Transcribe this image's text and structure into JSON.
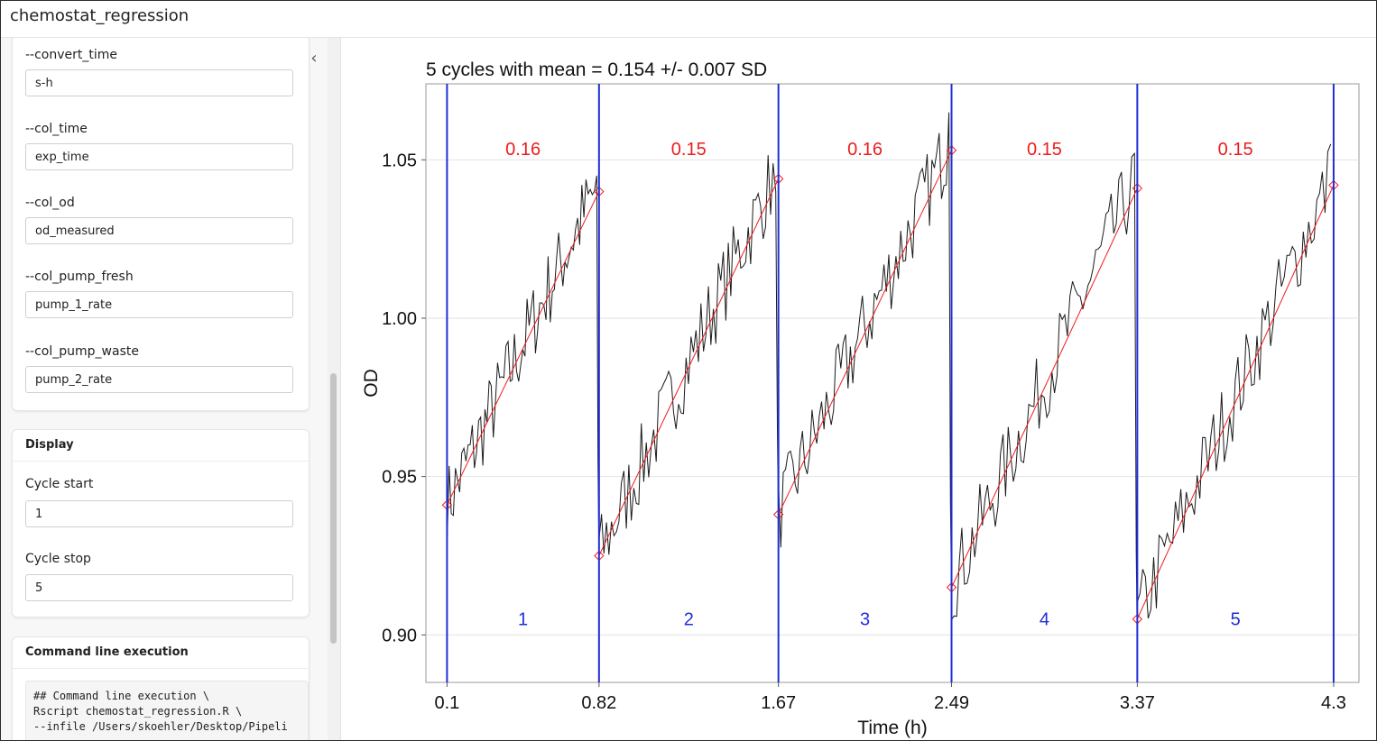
{
  "app": {
    "title": "chemostat_regression"
  },
  "sidebar": {
    "collapse_icon": "chevron-left-icon",
    "params": [
      {
        "label": "--convert_time",
        "value": "s-h"
      },
      {
        "label": "--col_time",
        "value": "exp_time"
      },
      {
        "label": "--col_od",
        "value": "od_measured"
      },
      {
        "label": "--col_pump_fresh",
        "value": "pump_1_rate"
      },
      {
        "label": "--col_pump_waste",
        "value": "pump_2_rate"
      }
    ],
    "display": {
      "header": "Display",
      "cycle_start_label": "Cycle start",
      "cycle_start_value": "1",
      "cycle_stop_label": "Cycle stop",
      "cycle_stop_value": "5"
    },
    "cmd": {
      "header": "Command line execution",
      "lines": [
        "## Command line execution \\",
        "Rscript chemostat_regression.R \\",
        "--infile /Users/skoehler/Desktop/Pipeli"
      ]
    }
  },
  "chart_data": {
    "type": "line",
    "title": "5 cycles with mean = 0.154 +/- 0.007 SD",
    "xlabel": "Time (h)",
    "ylabel": "OD",
    "xlim": [
      0.0,
      4.42
    ],
    "ylim": [
      0.885,
      1.074
    ],
    "x_ticks": [
      0.1,
      0.82,
      1.67,
      2.49,
      3.37,
      4.3
    ],
    "x_tick_labels": [
      "0.1",
      "0.82",
      "1.67",
      "2.49",
      "3.37",
      "4.3"
    ],
    "y_ticks": [
      0.9,
      0.95,
      1.0,
      1.05
    ],
    "y_tick_labels": [
      "0.90",
      "0.95",
      "1.00",
      "1.05"
    ],
    "grid": true,
    "cycle_boundaries": [
      0.1,
      0.82,
      1.67,
      2.49,
      3.37,
      4.3
    ],
    "cycles": [
      {
        "label": "1",
        "rate": "0.16",
        "x_start": 0.1,
        "x_end": 0.82,
        "fit_start": 0.941,
        "fit_end": 1.04,
        "peak": 1.045,
        "trough": 0.925
      },
      {
        "label": "2",
        "rate": "0.15",
        "x_start": 0.82,
        "x_end": 1.67,
        "fit_start": 0.925,
        "fit_end": 1.044,
        "peak": 1.04,
        "trough": 0.935
      },
      {
        "label": "3",
        "rate": "0.16",
        "x_start": 1.67,
        "x_end": 2.49,
        "fit_start": 0.938,
        "fit_end": 1.053,
        "peak": 1.065,
        "trough": 0.912
      },
      {
        "label": "4",
        "rate": "0.15",
        "x_start": 2.49,
        "x_end": 3.37,
        "fit_start": 0.915,
        "fit_end": 1.041,
        "peak": 1.052,
        "trough": 0.896
      },
      {
        "label": "5",
        "rate": "0.15",
        "x_start": 3.37,
        "x_end": 4.3,
        "fit_start": 0.905,
        "fit_end": 1.042,
        "peak": 1.055,
        "trough": 0.897
      }
    ],
    "label_y_rate": 1.0535,
    "label_y_cycle": 0.905,
    "colors": {
      "boundary": "#1f2fd6",
      "fit": "#ee1c1c",
      "raw": "#1a1a1a",
      "rate_label": "#ee1c1c",
      "cycle_label": "#1f2fd6"
    }
  }
}
